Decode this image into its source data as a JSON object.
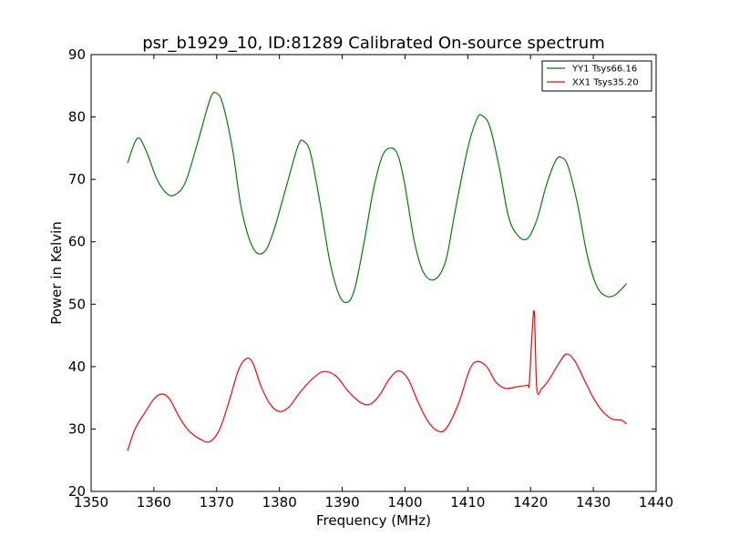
{
  "chart_data": {
    "type": "line",
    "title": "psr_b1929_10, ID:81289 Calibrated On-source spectrum",
    "xlabel": "Frequency (MHz)",
    "ylabel": "Power in Kelvin",
    "xlim": [
      1350,
      1440
    ],
    "ylim": [
      20,
      90
    ],
    "xticks": [
      1350,
      1360,
      1370,
      1380,
      1390,
      1400,
      1410,
      1420,
      1430,
      1440
    ],
    "yticks": [
      20,
      30,
      40,
      50,
      60,
      70,
      80,
      90
    ],
    "grid": false,
    "legend_position": "top-right",
    "series": [
      {
        "name": "YY1 Tsys66.16",
        "color": "#008000",
        "x": [
          1355.8,
          1357.0,
          1357.8,
          1359.0,
          1360.5,
          1362.0,
          1363.3,
          1365.0,
          1367.0,
          1369.0,
          1370.0,
          1371.0,
          1372.5,
          1374.0,
          1375.8,
          1377.5,
          1379.0,
          1381.0,
          1383.0,
          1384.0,
          1385.0,
          1386.5,
          1388.0,
          1389.5,
          1390.8,
          1392.0,
          1393.5,
          1395.0,
          1396.5,
          1398.0,
          1399.0,
          1400.0,
          1401.5,
          1403.0,
          1404.8,
          1406.5,
          1408.0,
          1410.0,
          1411.5,
          1412.3,
          1413.5,
          1415.0,
          1416.5,
          1418.0,
          1419.5,
          1421.0,
          1422.5,
          1424.0,
          1425.0,
          1426.0,
          1427.5,
          1429.0,
          1430.5,
          1432.0,
          1433.5,
          1435.3
        ],
        "values": [
          72.6,
          76.0,
          76.5,
          74.0,
          70.0,
          67.8,
          67.5,
          69.5,
          76.0,
          83.0,
          83.8,
          82.0,
          75.0,
          65.0,
          59.0,
          58.3,
          61.5,
          68.5,
          75.5,
          76.0,
          74.0,
          66.0,
          57.0,
          51.5,
          50.3,
          52.5,
          60.0,
          68.5,
          74.0,
          75.0,
          73.5,
          69.0,
          60.0,
          55.0,
          54.0,
          57.0,
          65.0,
          75.0,
          79.8,
          80.2,
          78.5,
          72.0,
          64.0,
          61.0,
          60.5,
          63.5,
          69.0,
          73.0,
          73.5,
          72.0,
          66.0,
          58.0,
          53.0,
          51.3,
          51.5,
          53.3
        ]
      },
      {
        "name": "XX1 Tsys35.20",
        "color": "#ff0000",
        "x": [
          1355.8,
          1357.0,
          1358.5,
          1360.0,
          1361.3,
          1362.5,
          1364.0,
          1365.5,
          1367.5,
          1369.0,
          1370.5,
          1372.0,
          1373.5,
          1374.8,
          1375.8,
          1377.0,
          1378.5,
          1380.0,
          1381.5,
          1383.0,
          1385.0,
          1387.0,
          1389.0,
          1391.0,
          1393.0,
          1394.5,
          1396.0,
          1397.5,
          1399.0,
          1400.5,
          1402.0,
          1403.5,
          1405.0,
          1406.5,
          1408.5,
          1410.3,
          1411.5,
          1413.0,
          1414.5,
          1416.0,
          1418.0,
          1419.5,
          1419.8,
          1420.2,
          1420.6,
          1421.0,
          1421.8,
          1423.0,
          1424.5,
          1425.7,
          1427.0,
          1428.5,
          1430.0,
          1431.5,
          1433.0,
          1434.5,
          1435.3
        ],
        "values": [
          26.5,
          30.0,
          32.5,
          34.8,
          35.6,
          34.8,
          32.0,
          29.8,
          28.3,
          28.0,
          30.0,
          34.5,
          39.5,
          41.3,
          40.5,
          37.0,
          34.0,
          32.8,
          33.5,
          35.5,
          37.8,
          39.2,
          38.5,
          36.0,
          34.2,
          34.0,
          35.5,
          38.0,
          39.3,
          38.0,
          34.5,
          31.5,
          29.8,
          30.0,
          34.0,
          39.5,
          40.8,
          40.0,
          37.5,
          36.5,
          36.8,
          37.0,
          37.2,
          44.5,
          48.7,
          36.5,
          36.5,
          38.0,
          40.5,
          42.0,
          41.0,
          38.0,
          35.0,
          32.8,
          31.6,
          31.4,
          30.8
        ]
      }
    ]
  }
}
